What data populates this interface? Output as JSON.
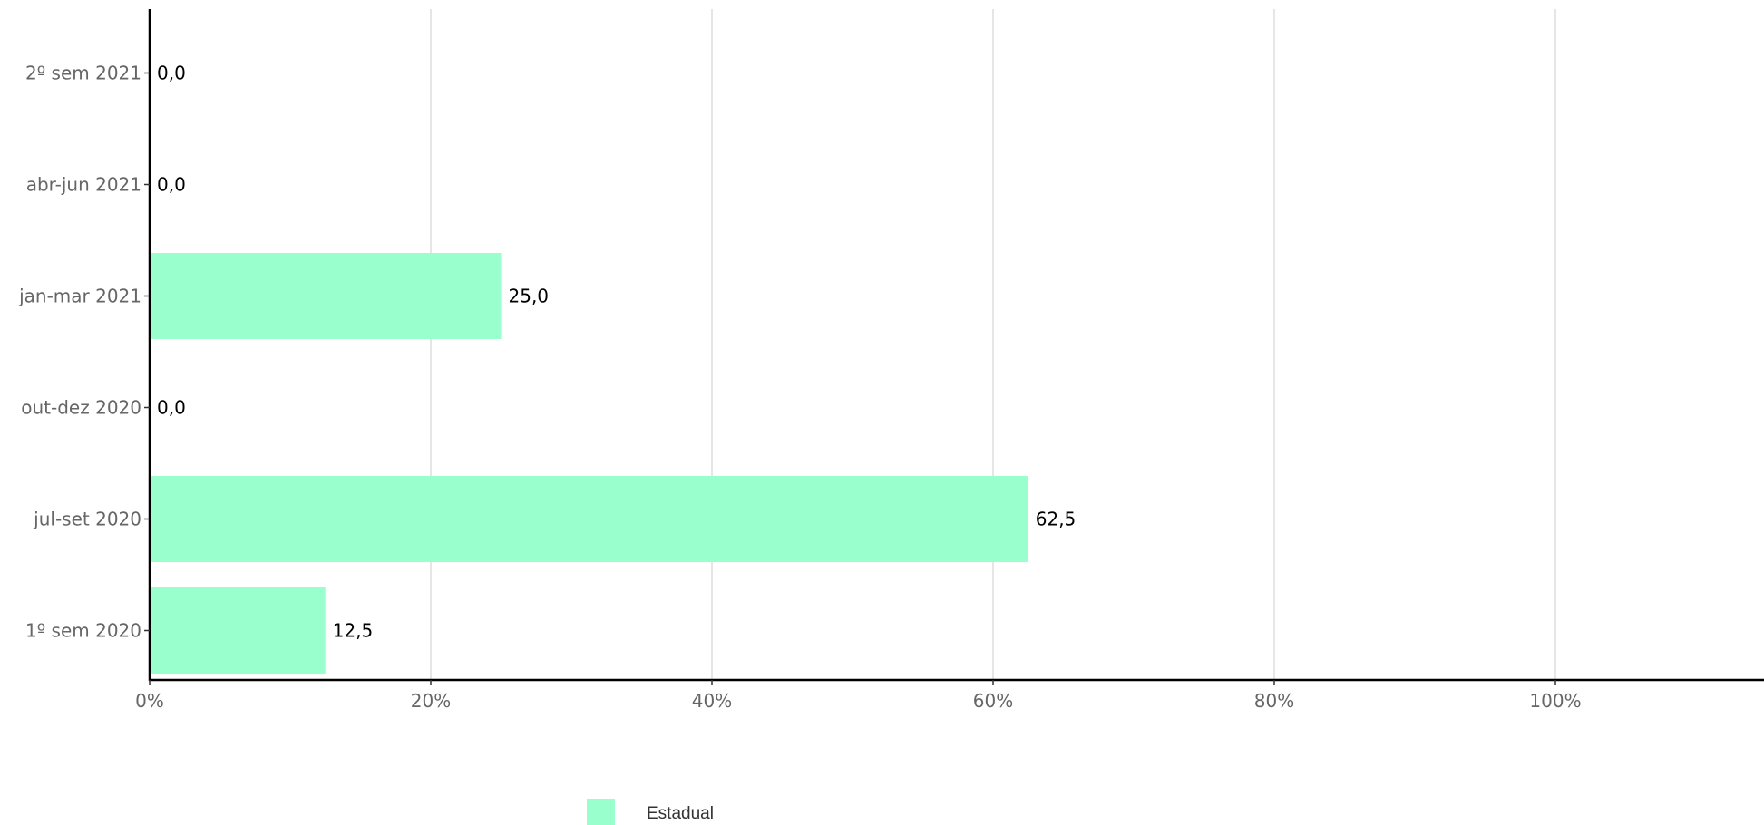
{
  "chart_data": {
    "type": "bar",
    "orientation": "horizontal",
    "categories": [
      "1º sem 2020",
      "jul-set 2020",
      "out-dez 2020",
      "jan-mar 2021",
      "abr-jun 2021",
      "2º sem 2021"
    ],
    "series": [
      {
        "name": "Estadual",
        "color": "#99ffcc",
        "values": [
          12.5,
          62.5,
          0.0,
          25.0,
          0.0,
          0.0
        ],
        "labels": [
          "12,5",
          "62,5",
          "0,0",
          "25,0",
          "0,0",
          "0,0"
        ]
      }
    ],
    "xlim": [
      0,
      115
    ],
    "x_ticks": [
      0,
      20,
      40,
      60,
      80,
      100
    ],
    "x_tick_labels": [
      "0%",
      "20%",
      "40%",
      "60%",
      "80%",
      "100%"
    ],
    "grid": "vertical",
    "legend_position": "bottom",
    "colors": {
      "gridline": "#e6e6e6",
      "axis": "#000000",
      "tick_label": "#666666"
    }
  }
}
